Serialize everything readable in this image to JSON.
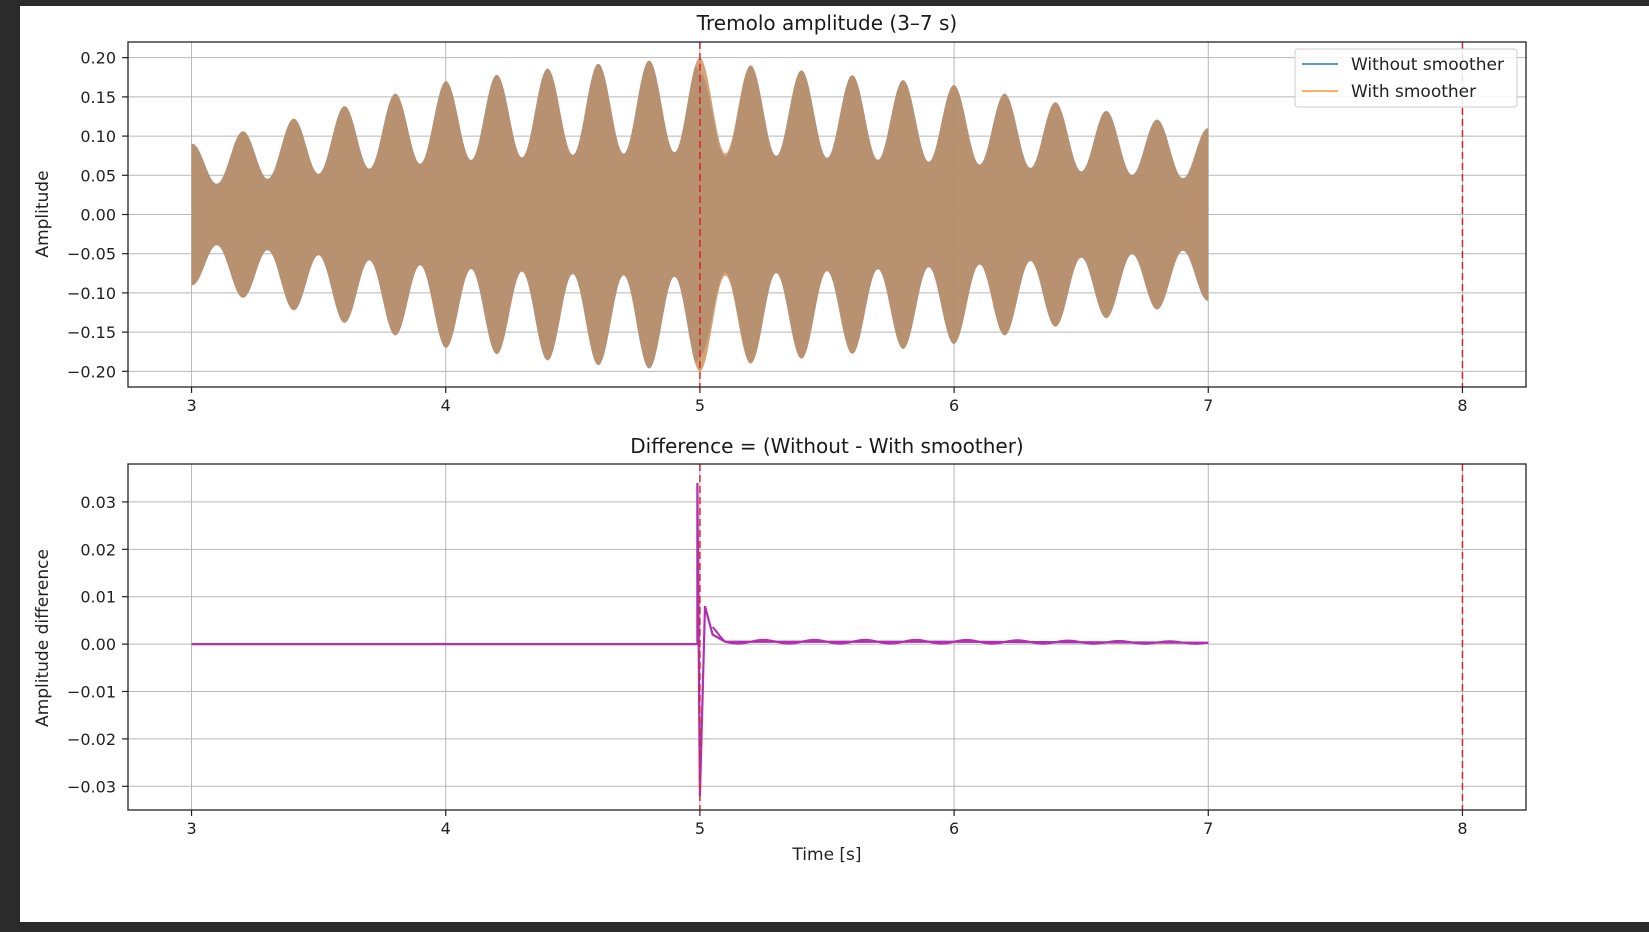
{
  "chart_data": [
    {
      "type": "area",
      "title": "Tremolo amplitude (3–7 s)",
      "xlabel": "",
      "ylabel": "Amplitude",
      "xlim": [
        2.75,
        8.25
      ],
      "ylim": [
        -0.22,
        0.22
      ],
      "xticks": [
        3,
        4,
        5,
        6,
        7,
        8
      ],
      "xtick_labels": [
        "3",
        "4",
        "5",
        "6",
        "7",
        "8"
      ],
      "yticks": [
        0.2,
        0.15,
        0.1,
        0.05,
        0.0,
        -0.05,
        -0.1,
        -0.15,
        -0.2
      ],
      "ytick_labels": [
        "0.20",
        "0.15",
        "0.10",
        "0.05",
        "0.00",
        "−0.05",
        "−0.10",
        "−0.15",
        "−0.20"
      ],
      "grid": true,
      "legend_position": "top-right",
      "vertical_lines": [
        5,
        8
      ],
      "series": [
        {
          "name": "Without smoother",
          "color": "#5b9bd5",
          "x": [
            3.0,
            4.0,
            4.5,
            4.98,
            5.0,
            5.2,
            6.0,
            7.0
          ],
          "envelope": [
            0.09,
            0.17,
            0.19,
            0.2,
            0.18,
            0.19,
            0.165,
            0.11
          ]
        },
        {
          "name": "With smoother",
          "color": "#ffb062",
          "x": [
            3.0,
            4.0,
            4.5,
            4.98,
            5.0,
            5.2,
            6.0,
            7.0
          ],
          "envelope": [
            0.09,
            0.17,
            0.19,
            0.2,
            0.2,
            0.19,
            0.165,
            0.11
          ]
        }
      ]
    },
    {
      "type": "line",
      "title": "Difference = (Without - With smoother)",
      "xlabel": "Time [s]",
      "ylabel": "Amplitude difference",
      "xlim": [
        2.75,
        8.25
      ],
      "ylim": [
        -0.035,
        0.038
      ],
      "xticks": [
        3,
        4,
        5,
        6,
        7,
        8
      ],
      "xtick_labels": [
        "3",
        "4",
        "5",
        "6",
        "7",
        "8"
      ],
      "yticks": [
        0.03,
        0.02,
        0.01,
        0.0,
        -0.01,
        -0.02,
        -0.03
      ],
      "ytick_labels": [
        "0.03",
        "0.02",
        "0.01",
        "0.00",
        "−0.01",
        "−0.02",
        "−0.03"
      ],
      "grid": true,
      "vertical_lines": [
        5,
        8
      ],
      "series": [
        {
          "color": "#b030b0",
          "x": [
            3.0,
            4.99,
            4.99,
            5.0,
            5.02,
            5.05,
            5.1,
            6.0,
            7.0
          ],
          "y": [
            0.0,
            0.0,
            0.034,
            -0.032,
            0.008,
            0.002,
            0.0005,
            0.0005,
            0.0003
          ]
        }
      ]
    }
  ]
}
